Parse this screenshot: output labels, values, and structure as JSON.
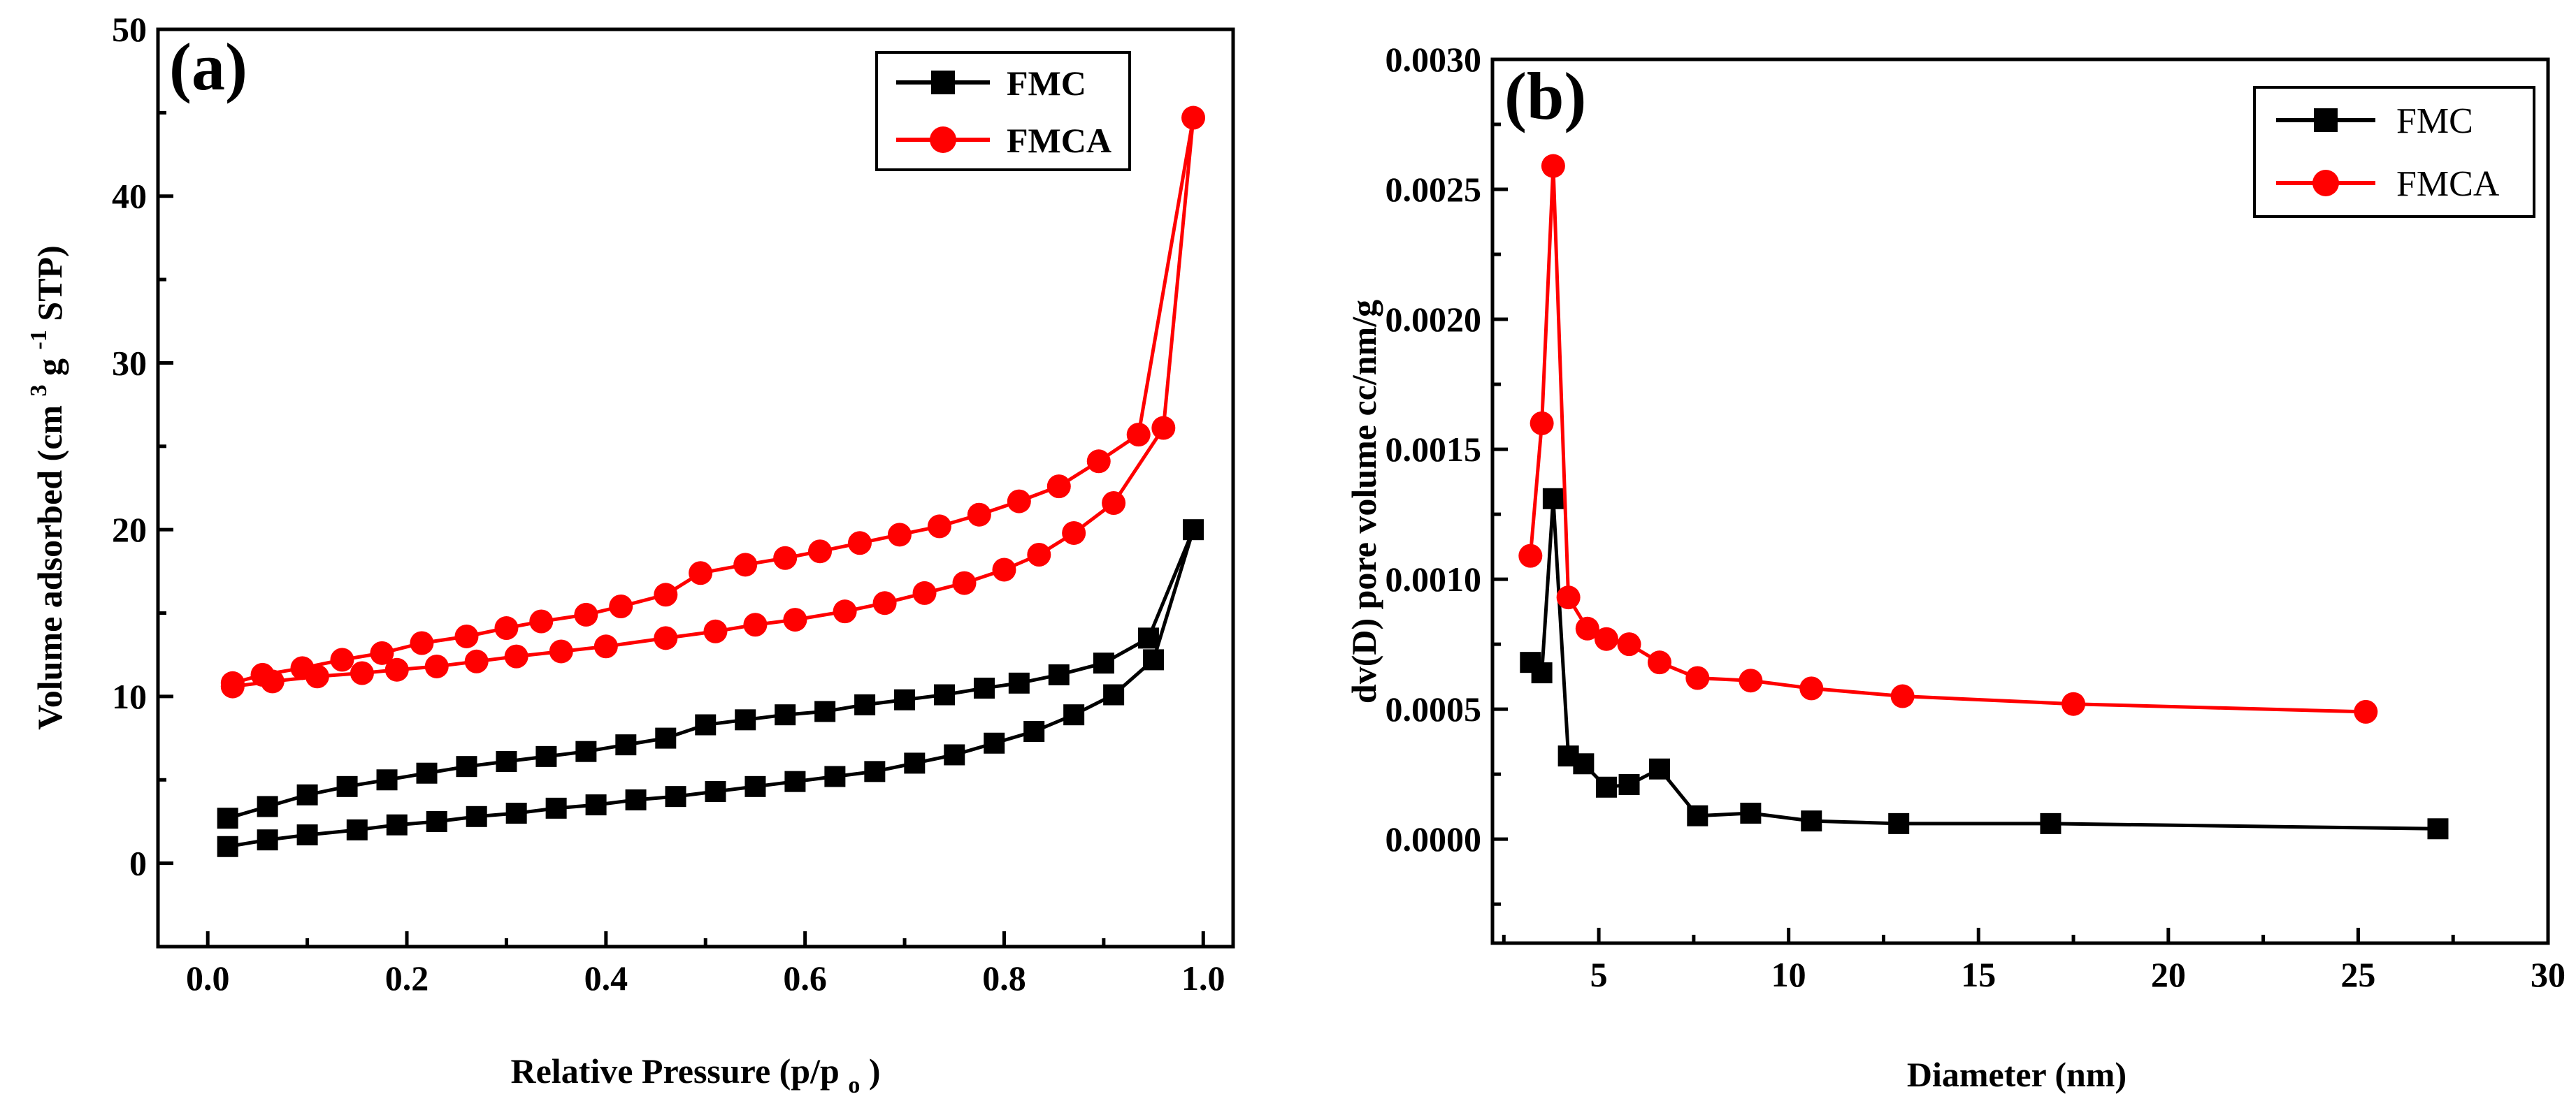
{
  "chart_data": [
    {
      "type": "line",
      "panel_label": "(a)",
      "title": "",
      "xlabel": "Relative Pressure",
      "xlabel_expr": {
        "open": "(p/p",
        "sub": "o",
        "close": ")"
      },
      "ylabel": "Volume adsorbed",
      "ylabel_expr": {
        "p1": "(cm",
        "sup1": "3",
        "p2": "g",
        "sup2": "-1",
        "p3": "STP)"
      },
      "xlim": [
        -0.05,
        1.03
      ],
      "ylim": [
        -5,
        50
      ],
      "xticks": [
        "0.0",
        "0.2",
        "0.4",
        "0.6",
        "0.8",
        "1.0"
      ],
      "yticks": [
        "0",
        "10",
        "20",
        "30",
        "40",
        "50"
      ],
      "legend": "top-right",
      "series": [
        {
          "name": "FMC",
          "color": "#000000",
          "marker": "square",
          "x": [
            0.02,
            0.06,
            0.1,
            0.15,
            0.19,
            0.23,
            0.27,
            0.31,
            0.35,
            0.39,
            0.43,
            0.47,
            0.51,
            0.55,
            0.59,
            0.63,
            0.67,
            0.71,
            0.75,
            0.79,
            0.83,
            0.87,
            0.91,
            0.95,
            0.99,
            0.945,
            0.9,
            0.855,
            0.815,
            0.78,
            0.74,
            0.7,
            0.66,
            0.62,
            0.58,
            0.54,
            0.5,
            0.46,
            0.42,
            0.38,
            0.34,
            0.3,
            0.26,
            0.22,
            0.18,
            0.14,
            0.1,
            0.06,
            0.02
          ],
          "y": [
            1.0,
            1.4,
            1.7,
            2.0,
            2.3,
            2.5,
            2.8,
            3.0,
            3.3,
            3.5,
            3.8,
            4.0,
            4.3,
            4.6,
            4.9,
            5.2,
            5.5,
            6.0,
            6.5,
            7.2,
            7.9,
            8.9,
            10.1,
            12.2,
            20.0,
            13.5,
            12.0,
            11.3,
            10.8,
            10.5,
            10.1,
            9.8,
            9.5,
            9.1,
            8.9,
            8.6,
            8.3,
            7.5,
            7.1,
            6.7,
            6.4,
            6.1,
            5.8,
            5.4,
            5.0,
            4.6,
            4.1,
            3.4,
            2.7
          ]
        },
        {
          "name": "FMCA",
          "color": "#ff0000",
          "marker": "circle",
          "x": [
            0.025,
            0.065,
            0.11,
            0.155,
            0.19,
            0.23,
            0.27,
            0.31,
            0.355,
            0.4,
            0.46,
            0.51,
            0.55,
            0.59,
            0.64,
            0.68,
            0.72,
            0.76,
            0.8,
            0.835,
            0.87,
            0.91,
            0.96,
            0.99,
            0.935,
            0.895,
            0.855,
            0.815,
            0.775,
            0.735,
            0.695,
            0.655,
            0.615,
            0.58,
            0.54,
            0.495,
            0.46,
            0.415,
            0.38,
            0.335,
            0.3,
            0.26,
            0.215,
            0.175,
            0.135,
            0.095,
            0.055,
            0.025
          ],
          "y": [
            10.6,
            10.9,
            11.2,
            11.4,
            11.6,
            11.8,
            12.1,
            12.4,
            12.7,
            13.0,
            13.5,
            13.9,
            14.3,
            14.6,
            15.1,
            15.6,
            16.2,
            16.8,
            17.6,
            18.5,
            19.8,
            21.6,
            26.1,
            44.7,
            25.7,
            24.1,
            22.6,
            21.7,
            20.9,
            20.2,
            19.7,
            19.2,
            18.7,
            18.3,
            17.9,
            17.4,
            16.1,
            15.4,
            14.9,
            14.5,
            14.1,
            13.6,
            13.2,
            12.6,
            12.2,
            11.7,
            11.3,
            10.8
          ]
        }
      ]
    },
    {
      "type": "line",
      "panel_label": "(b)",
      "title": "",
      "xlabel": "Diameter (nm)",
      "ylabel": "dv(D) pore volume cc/nm/g",
      "xlim": [
        2.2,
        30
      ],
      "ylim": [
        -0.0004,
        0.003
      ],
      "xticks": [
        "5",
        "10",
        "15",
        "20",
        "25",
        "30"
      ],
      "yticks": [
        "0.0000",
        "0.0005",
        "0.0010",
        "0.0015",
        "0.0020",
        "0.0025",
        "0.0030"
      ],
      "legend": "top-right",
      "series": [
        {
          "name": "FMC",
          "color": "#000000",
          "marker": "square",
          "x": [
            3.2,
            3.5,
            3.8,
            4.2,
            4.6,
            5.2,
            5.8,
            6.6,
            7.6,
            9.0,
            10.6,
            12.9,
            16.9,
            27.1
          ],
          "y": [
            0.00068,
            0.00064,
            0.00131,
            0.00032,
            0.00029,
            0.0002,
            0.00021,
            0.00027,
            9e-05,
            0.0001,
            7e-05,
            6e-05,
            6e-05,
            4e-05
          ]
        },
        {
          "name": "FMCA",
          "color": "#ff0000",
          "marker": "circle",
          "x": [
            3.2,
            3.5,
            3.8,
            4.2,
            4.7,
            5.2,
            5.8,
            6.6,
            7.6,
            9.0,
            10.6,
            13.0,
            17.5,
            25.2
          ],
          "y": [
            0.00109,
            0.0016,
            0.00259,
            0.00093,
            0.00081,
            0.00077,
            0.00075,
            0.00068,
            0.00062,
            0.00061,
            0.00058,
            0.00055,
            0.00052,
            0.00049
          ]
        }
      ]
    }
  ]
}
